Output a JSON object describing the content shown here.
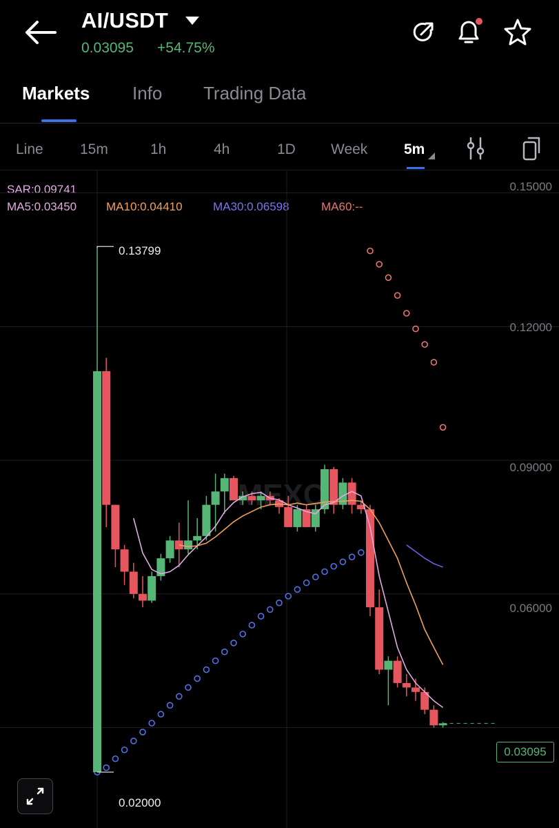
{
  "header": {
    "pair": "AI/USDT",
    "price": "0.03095",
    "change": "+54.75%",
    "icons": [
      "back-arrow-icon",
      "dropdown-caret-icon",
      "share-icon",
      "bell-icon",
      "star-icon"
    ]
  },
  "tabs": [
    {
      "label": "Markets",
      "active": true
    },
    {
      "label": "Info",
      "active": false
    },
    {
      "label": "Trading Data",
      "active": false
    }
  ],
  "timeframes": [
    {
      "label": "Line"
    },
    {
      "label": "15m"
    },
    {
      "label": "1h"
    },
    {
      "label": "4h"
    },
    {
      "label": "1D"
    },
    {
      "label": "Week"
    },
    {
      "label": "5m",
      "active": true
    }
  ],
  "indicators": {
    "sar": "SAR:0.09741",
    "ma5": "MA5:0.03450",
    "ma10": "MA10:0.04410",
    "ma30": "MA30:0.06598",
    "ma60": "MA60:--"
  },
  "colors": {
    "up": "#56b676",
    "down": "#e5565e",
    "ma5": "#e3a9e5",
    "ma10": "#f1a15e",
    "ma30": "#6a62e6",
    "sar_above": "#e9766e",
    "sar_below": "#5470e8",
    "accent": "#3d6fe8"
  },
  "watermark": "MEXC",
  "chart_data": {
    "type": "candlestick",
    "yaxis_labels": [
      "0.15000",
      "0.12000",
      "0.09000",
      "0.06000"
    ],
    "ylim": [
      0.0135,
      0.1515
    ],
    "current_price": "0.03095",
    "high_marker": "0.13799",
    "low_marker": "0.02000",
    "candles": [
      {
        "o": 0.02,
        "h": 0.138,
        "l": 0.02,
        "c": 0.11
      },
      {
        "o": 0.11,
        "h": 0.113,
        "l": 0.075,
        "c": 0.08
      },
      {
        "o": 0.08,
        "h": 0.08,
        "l": 0.066,
        "c": 0.07
      },
      {
        "o": 0.07,
        "h": 0.071,
        "l": 0.062,
        "c": 0.065
      },
      {
        "o": 0.065,
        "h": 0.067,
        "l": 0.059,
        "c": 0.06
      },
      {
        "o": 0.06,
        "h": 0.064,
        "l": 0.057,
        "c": 0.0585
      },
      {
        "o": 0.0585,
        "h": 0.065,
        "l": 0.058,
        "c": 0.064
      },
      {
        "o": 0.064,
        "h": 0.069,
        "l": 0.063,
        "c": 0.068
      },
      {
        "o": 0.068,
        "h": 0.073,
        "l": 0.067,
        "c": 0.072
      },
      {
        "o": 0.072,
        "h": 0.076,
        "l": 0.066,
        "c": 0.07
      },
      {
        "o": 0.07,
        "h": 0.081,
        "l": 0.069,
        "c": 0.072
      },
      {
        "o": 0.072,
        "h": 0.077,
        "l": 0.07,
        "c": 0.073
      },
      {
        "o": 0.073,
        "h": 0.082,
        "l": 0.072,
        "c": 0.08
      },
      {
        "o": 0.08,
        "h": 0.087,
        "l": 0.074,
        "c": 0.083
      },
      {
        "o": 0.083,
        "h": 0.087,
        "l": 0.078,
        "c": 0.086
      },
      {
        "o": 0.086,
        "h": 0.0865,
        "l": 0.081,
        "c": 0.081
      },
      {
        "o": 0.081,
        "h": 0.083,
        "l": 0.08,
        "c": 0.082
      },
      {
        "o": 0.082,
        "h": 0.083,
        "l": 0.08,
        "c": 0.081
      },
      {
        "o": 0.081,
        "h": 0.083,
        "l": 0.079,
        "c": 0.082
      },
      {
        "o": 0.082,
        "h": 0.083,
        "l": 0.08,
        "c": 0.081
      },
      {
        "o": 0.081,
        "h": 0.0815,
        "l": 0.078,
        "c": 0.0795
      },
      {
        "o": 0.0795,
        "h": 0.082,
        "l": 0.075,
        "c": 0.075
      },
      {
        "o": 0.075,
        "h": 0.08,
        "l": 0.074,
        "c": 0.079
      },
      {
        "o": 0.079,
        "h": 0.08,
        "l": 0.075,
        "c": 0.075
      },
      {
        "o": 0.075,
        "h": 0.08,
        "l": 0.074,
        "c": 0.079
      },
      {
        "o": 0.079,
        "h": 0.089,
        "l": 0.078,
        "c": 0.088
      },
      {
        "o": 0.088,
        "h": 0.0885,
        "l": 0.078,
        "c": 0.08
      },
      {
        "o": 0.08,
        "h": 0.086,
        "l": 0.079,
        "c": 0.085
      },
      {
        "o": 0.085,
        "h": 0.086,
        "l": 0.078,
        "c": 0.08
      },
      {
        "o": 0.08,
        "h": 0.081,
        "l": 0.078,
        "c": 0.079
      },
      {
        "o": 0.079,
        "h": 0.08,
        "l": 0.055,
        "c": 0.057
      },
      {
        "o": 0.057,
        "h": 0.061,
        "l": 0.042,
        "c": 0.043
      },
      {
        "o": 0.043,
        "h": 0.046,
        "l": 0.035,
        "c": 0.045
      },
      {
        "o": 0.045,
        "h": 0.046,
        "l": 0.039,
        "c": 0.04
      },
      {
        "o": 0.04,
        "h": 0.042,
        "l": 0.037,
        "c": 0.039
      },
      {
        "o": 0.039,
        "h": 0.041,
        "l": 0.036,
        "c": 0.038
      },
      {
        "o": 0.038,
        "h": 0.039,
        "l": 0.033,
        "c": 0.034
      },
      {
        "o": 0.034,
        "h": 0.035,
        "l": 0.03,
        "c": 0.0305
      },
      {
        "o": 0.0305,
        "h": 0.0312,
        "l": 0.03,
        "c": 0.03095
      }
    ],
    "ma5": [
      null,
      null,
      null,
      null,
      0.077,
      0.0692,
      0.0655,
      0.0645,
      0.065,
      0.0664,
      0.0688,
      0.0708,
      0.0728,
      0.0752,
      0.0784,
      0.0805,
      0.0818,
      0.0825,
      0.0828,
      0.0815,
      0.0811,
      0.08,
      0.0793,
      0.0785,
      0.078,
      0.08,
      0.0805,
      0.082,
      0.083,
      0.082,
      0.075,
      0.064,
      0.056,
      0.048,
      0.043,
      0.04,
      0.038,
      0.036,
      0.0345
    ],
    "ma10": [
      null,
      null,
      null,
      null,
      null,
      null,
      null,
      null,
      null,
      0.071,
      0.0706,
      0.0708,
      0.0714,
      0.0728,
      0.0745,
      0.0762,
      0.0775,
      0.0785,
      0.0795,
      0.08,
      0.0802,
      0.08,
      0.0804,
      0.08,
      0.0803,
      0.0806,
      0.0808,
      0.0808,
      0.081,
      0.0808,
      0.079,
      0.076,
      0.072,
      0.068,
      0.0625,
      0.0575,
      0.052,
      0.048,
      0.0441
    ],
    "ma30": [
      null,
      null,
      null,
      null,
      null,
      null,
      null,
      null,
      null,
      null,
      null,
      null,
      null,
      null,
      null,
      null,
      null,
      null,
      null,
      null,
      null,
      null,
      null,
      null,
      null,
      null,
      null,
      null,
      null,
      null,
      null,
      null,
      null,
      null,
      0.071,
      0.0695,
      0.068,
      0.0668,
      0.066
    ],
    "sar": [
      0.02,
      0.021,
      0.023,
      0.025,
      0.027,
      0.029,
      0.031,
      0.033,
      0.035,
      0.037,
      0.039,
      0.041,
      0.043,
      0.045,
      0.047,
      0.049,
      0.051,
      0.053,
      0.055,
      0.0565,
      0.058,
      0.0595,
      0.061,
      0.0625,
      0.0638,
      0.065,
      0.0662,
      0.0672,
      0.0683,
      0.0693,
      0.137,
      0.134,
      0.131,
      0.127,
      0.123,
      0.1195,
      0.116,
      0.112,
      0.0974
    ]
  }
}
